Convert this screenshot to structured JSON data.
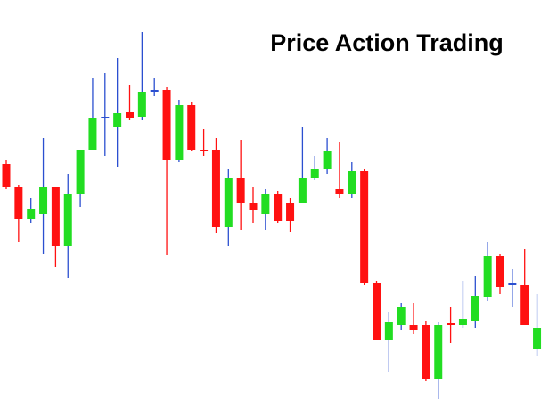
{
  "chart_data": {
    "type": "candlestick",
    "title": "Price Action Trading",
    "open": [
      264,
      238,
      202,
      208,
      238,
      172,
      230,
      280,
      316,
      305,
      322,
      317,
      346,
      347,
      268,
      330,
      280,
      280,
      193,
      248,
      220,
      208,
      230,
      220,
      220,
      248,
      258,
      236,
      230,
      256,
      130,
      66,
      83,
      83,
      83,
      23,
      85,
      83,
      88,
      114,
      160,
      129,
      128,
      56
    ],
    "high": [
      268,
      240,
      226,
      293,
      238,
      253,
      280,
      360,
      366,
      383,
      353,
      412,
      360,
      350,
      336,
      333,
      303,
      293,
      258,
      291,
      238,
      236,
      233,
      226,
      305,
      273,
      293,
      288,
      266,
      258,
      133,
      98,
      108,
      108,
      88,
      86,
      103,
      133,
      138,
      176,
      163,
      146,
      168,
      118
    ],
    "low": [
      236,
      176,
      198,
      163,
      148,
      136,
      216,
      280,
      273,
      260,
      313,
      313,
      340,
      162,
      266,
      278,
      273,
      186,
      172,
      190,
      198,
      190,
      198,
      188,
      220,
      246,
      253,
      226,
      226,
      128,
      66,
      30,
      78,
      73,
      20,
      0,
      63,
      80,
      80,
      110,
      118,
      103,
      83,
      48
    ],
    "close": [
      238,
      202,
      213,
      238,
      172,
      230,
      280,
      315,
      316,
      321,
      315,
      345,
      346,
      268,
      330,
      280,
      278,
      193,
      248,
      220,
      212,
      230,
      200,
      200,
      248,
      258,
      278,
      230,
      256,
      130,
      66,
      86,
      103,
      78,
      23,
      83,
      83,
      90,
      116,
      160,
      126,
      129,
      83,
      80
    ],
    "up_color": "#22dd22",
    "down_color": "#ff1111",
    "up_wick_color": "#2b4fd0",
    "down_wick_color": "#ff1111",
    "ylim": [
      0,
      448
    ]
  }
}
